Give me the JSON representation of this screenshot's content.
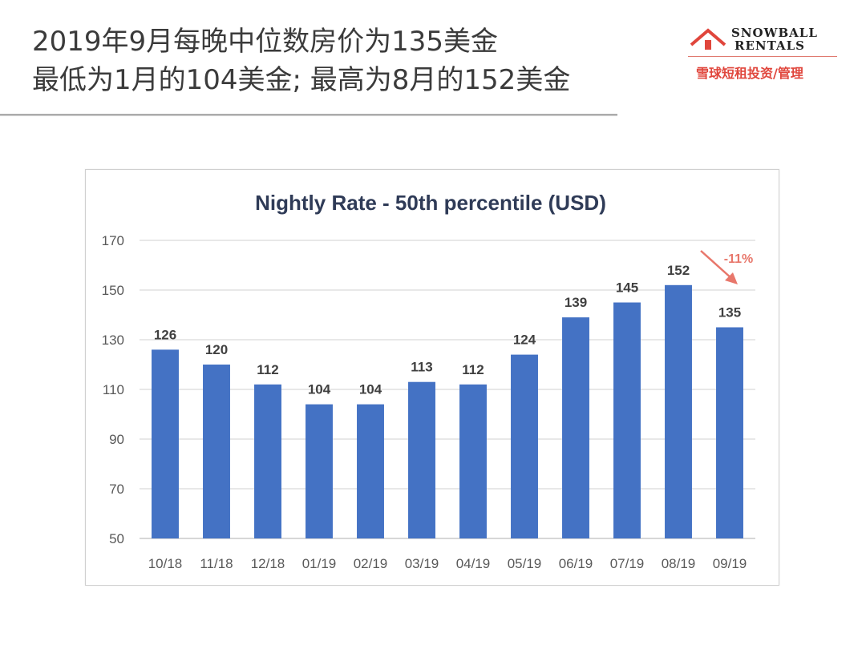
{
  "headline": {
    "line1": "2019年9月每晚中位数房价为135美金",
    "line2": "最低为1月的104美金; 最高为8月的152美金"
  },
  "logo": {
    "brand_line1": "SNOWBALL",
    "brand_line2": "RENTALS",
    "tagline": "雪球短租投资/管理",
    "icon": "house-roof-icon",
    "accent": "#e0463c"
  },
  "chart_data": {
    "type": "bar",
    "title": "Nightly Rate - 50th percentile (USD)",
    "categories": [
      "10/18",
      "11/18",
      "12/18",
      "01/19",
      "02/19",
      "03/19",
      "04/19",
      "05/19",
      "06/19",
      "07/19",
      "08/19",
      "09/19"
    ],
    "values": [
      126,
      120,
      112,
      104,
      104,
      113,
      112,
      124,
      139,
      145,
      152,
      135
    ],
    "ylim": [
      50,
      170
    ],
    "yticks": [
      50,
      70,
      90,
      110,
      130,
      150,
      170
    ],
    "xlabel": "",
    "ylabel": "",
    "grid": true,
    "bar_color": "#4472c4",
    "annotation": {
      "text": "-11%",
      "color": "#e8776b",
      "icon": "arrow-down-right-icon"
    }
  }
}
